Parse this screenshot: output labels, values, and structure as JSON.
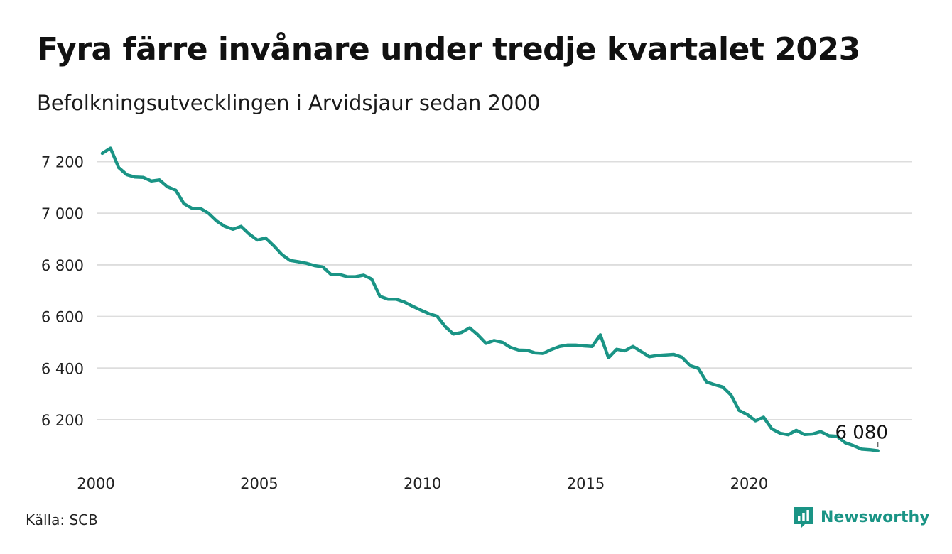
{
  "header": {
    "title": "Fyra färre invånare under tredje kvartalet 2023",
    "subtitle": "Befolkningsutvecklingen i Arvidsjaur sedan 2000"
  },
  "footer": {
    "source": "Källa: SCB",
    "brand_name": "Newsworthy",
    "brand_color": "#1a9485"
  },
  "chart_data": {
    "type": "line",
    "title": "Fyra färre invånare under tredje kvartalet 2023",
    "subtitle": "Befolkningsutvecklingen i Arvidsjaur sedan 2000",
    "xlabel": "",
    "ylabel": "",
    "x_ticks": [
      "2000",
      "2005",
      "2010",
      "2015",
      "2020"
    ],
    "y_ticks": [
      "6 200",
      "6 400",
      "6 600",
      "6 800",
      "7 000",
      "7 200"
    ],
    "y_tick_values": [
      6200,
      6400,
      6600,
      6800,
      7000,
      7200
    ],
    "ylim": [
      6050,
      7250
    ],
    "xlim": [
      2000.0,
      2024.8
    ],
    "grid": "horizontal",
    "line_color": "#1a9485",
    "end_label": "6 080",
    "series": [
      {
        "x": [
          2000.0,
          2000.25,
          2000.5,
          2000.75,
          2001.0,
          2001.25,
          2001.5,
          2001.75,
          2002.0,
          2002.25,
          2002.5,
          2002.75,
          2003.0,
          2003.25,
          2003.5,
          2003.75,
          2004.0,
          2004.25,
          2004.5,
          2004.75,
          2005.0,
          2005.25,
          2005.5,
          2005.75,
          2006.0,
          2006.25,
          2006.5,
          2006.75,
          2007.0,
          2007.25,
          2007.5,
          2007.75,
          2008.0,
          2008.25,
          2008.5,
          2008.75,
          2009.0,
          2009.25,
          2009.5,
          2009.75,
          2010.0,
          2010.25,
          2010.5,
          2010.75,
          2011.0,
          2011.25,
          2011.5,
          2011.75,
          2012.0,
          2012.25,
          2012.5,
          2012.75,
          2013.0,
          2013.25,
          2013.5,
          2013.75,
          2014.0,
          2014.25,
          2014.5,
          2014.75,
          2015.0,
          2015.25,
          2015.5,
          2015.75,
          2016.0,
          2016.25,
          2016.5,
          2016.75,
          2017.0,
          2017.25,
          2017.5,
          2017.75,
          2018.0,
          2018.25,
          2018.5,
          2018.75,
          2019.0,
          2019.25,
          2019.5,
          2019.75,
          2020.0,
          2020.25,
          2020.5,
          2020.75,
          2021.0,
          2021.25,
          2021.5,
          2021.75,
          2022.0,
          2022.25,
          2022.5,
          2022.75,
          2023.0,
          2023.25,
          2023.5,
          2023.75
        ],
        "values": [
          7232,
          7252,
          7177,
          7149,
          7140,
          7139,
          7125,
          7129,
          7102,
          7089,
          7037,
          7019,
          7019,
          7000,
          6970,
          6949,
          6938,
          6949,
          6919,
          6896,
          6904,
          6874,
          6840,
          6817,
          6812,
          6806,
          6797,
          6792,
          6763,
          6763,
          6754,
          6754,
          6760,
          6745,
          6678,
          6667,
          6667,
          6656,
          6640,
          6625,
          6611,
          6601,
          6561,
          6532,
          6538,
          6556,
          6529,
          6496,
          6507,
          6500,
          6480,
          6470,
          6469,
          6459,
          6457,
          6472,
          6484,
          6489,
          6489,
          6486,
          6484,
          6529,
          6440,
          6473,
          6467,
          6484,
          6464,
          6444,
          6449,
          6451,
          6453,
          6442,
          6410,
          6399,
          6347,
          6336,
          6327,
          6296,
          6236,
          6220,
          6196,
          6210,
          6165,
          6148,
          6142,
          6159,
          6143,
          6145,
          6154,
          6138,
          6136,
          6111,
          6100,
          6086,
          6084,
          6080
        ]
      }
    ]
  }
}
